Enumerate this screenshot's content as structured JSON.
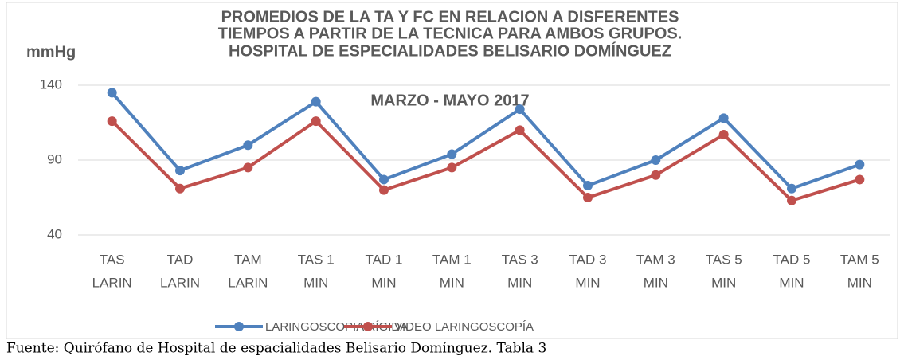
{
  "chart_data": {
    "type": "line",
    "title": [
      "PROMEDIOS DE LA TA Y FC EN RELACION A DISFERENTES",
      "TIEMPOS A PARTIR DE LA TECNICA PARA AMBOS GRUPOS.",
      "HOSPITAL DE ESPECIALIDADES BELISARIO DOMÍNGUEZ",
      "MARZO - MAYO 2017"
    ],
    "y_label": "mmHg",
    "categories": [
      [
        "TAS",
        "LARIN"
      ],
      [
        "TAD",
        "LARIN"
      ],
      [
        "TAM",
        "LARIN"
      ],
      [
        "TAS 1",
        "MIN"
      ],
      [
        "TAD 1",
        "MIN"
      ],
      [
        "TAM 1",
        "MIN"
      ],
      [
        "TAS 3",
        "MIN"
      ],
      [
        "TAD 3",
        "MIN"
      ],
      [
        "TAM 3",
        "MIN"
      ],
      [
        "TAS 5",
        "MIN"
      ],
      [
        "TAD 5",
        "MIN"
      ],
      [
        "TAM 5",
        "MIN"
      ]
    ],
    "series": [
      {
        "name": "LARINGOSCOPIA RÍGIDA",
        "color": "#4f81bd",
        "values": [
          135,
          83,
          100,
          129,
          77,
          94,
          124,
          73,
          90,
          118,
          71,
          87
        ]
      },
      {
        "name": "VIDEO  LARINGOSCOPÍA",
        "color": "#c0504d",
        "values": [
          116,
          71,
          85,
          116,
          70,
          85,
          110,
          65,
          80,
          107,
          63,
          77
        ]
      }
    ],
    "ylim": [
      40,
      140
    ],
    "yticks": [
      40,
      90,
      140
    ],
    "grid": true,
    "legend": "bottom",
    "source": "Fuente: Quirófano de Hospital de espacialidades Belisario Domínguez. Tabla 3"
  }
}
